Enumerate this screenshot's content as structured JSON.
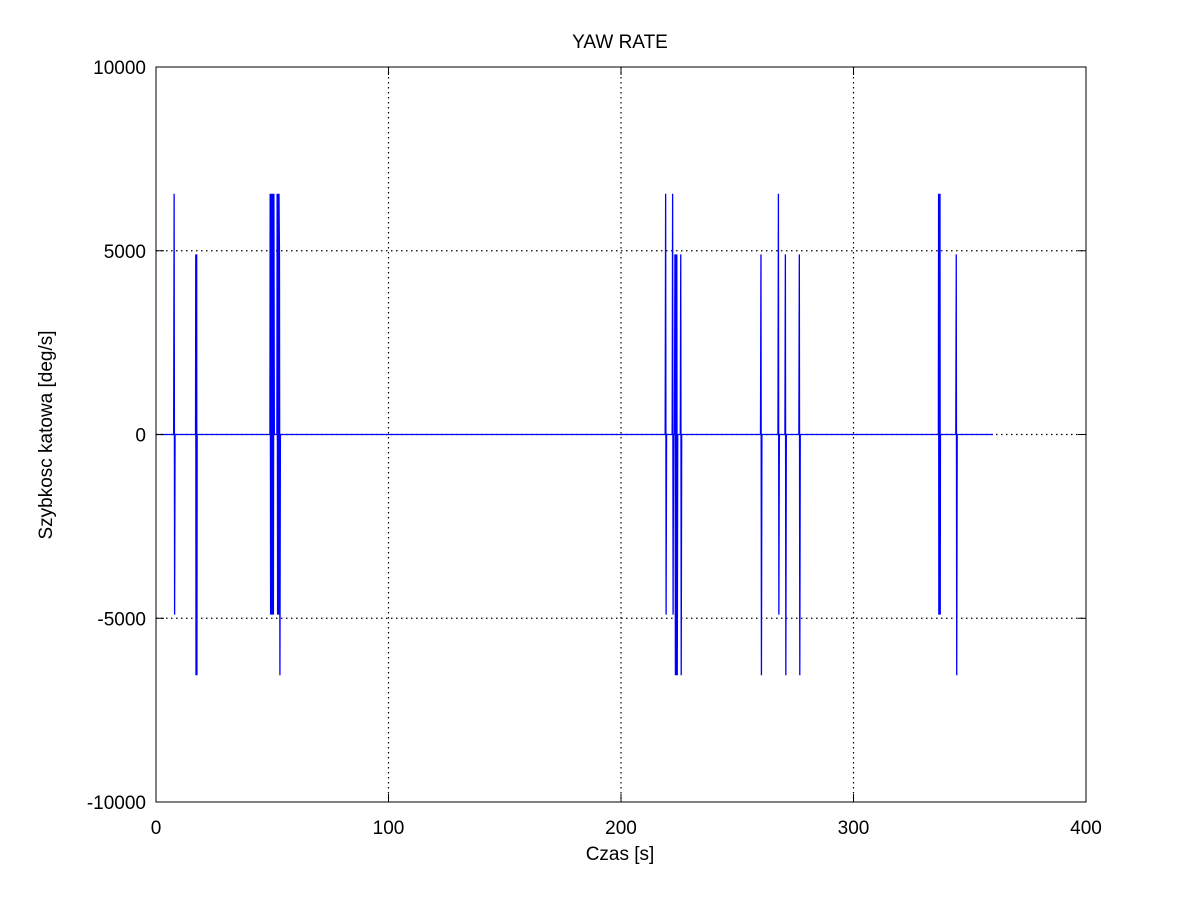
{
  "chart_data": {
    "type": "line",
    "title": "YAW RATE",
    "xlabel": "Czas [s]",
    "ylabel": "Szybkosc katowa [deg/s]",
    "xlim": [
      0,
      400
    ],
    "ylim": [
      -10000,
      10000
    ],
    "xticks": [
      0,
      100,
      200,
      300,
      400
    ],
    "yticks": [
      -10000,
      -5000,
      0,
      5000,
      10000
    ],
    "xtick_labels": [
      "0",
      "100",
      "200",
      "300",
      "400"
    ],
    "ytick_labels": [
      "-10000",
      "-5000",
      "0",
      "5000",
      "10000"
    ],
    "grid": true,
    "legend": "none",
    "series": [
      {
        "color": "#0000ff",
        "points": [
          [
            0,
            0
          ],
          [
            7.6,
            0
          ],
          [
            7.8,
            6550
          ],
          [
            8.0,
            -4900
          ],
          [
            8.2,
            0
          ],
          [
            17.0,
            0
          ],
          [
            17.1,
            4900
          ],
          [
            17.2,
            -6550
          ],
          [
            17.3,
            4900
          ],
          [
            17.4,
            -6550
          ],
          [
            17.5,
            4900
          ],
          [
            17.6,
            -6550
          ],
          [
            17.7,
            0
          ],
          [
            49.0,
            0
          ],
          [
            49.1,
            6550
          ],
          [
            49.3,
            -4900
          ],
          [
            49.5,
            6550
          ],
          [
            49.7,
            -4900
          ],
          [
            49.9,
            6550
          ],
          [
            50.1,
            -4900
          ],
          [
            50.3,
            6550
          ],
          [
            50.5,
            -4900
          ],
          [
            50.7,
            6550
          ],
          [
            50.9,
            0
          ],
          [
            52.0,
            0
          ],
          [
            52.1,
            6550
          ],
          [
            52.3,
            -4900
          ],
          [
            52.5,
            6550
          ],
          [
            52.7,
            -4900
          ],
          [
            52.9,
            6550
          ],
          [
            53.1,
            4900
          ],
          [
            53.3,
            -6550
          ],
          [
            53.5,
            0
          ],
          [
            219.0,
            0
          ],
          [
            219.2,
            6550
          ],
          [
            219.4,
            -4900
          ],
          [
            219.6,
            0
          ],
          [
            222.0,
            0
          ],
          [
            222.2,
            6550
          ],
          [
            222.4,
            -4900
          ],
          [
            222.6,
            0
          ],
          [
            223.0,
            0
          ],
          [
            223.2,
            4900
          ],
          [
            223.4,
            -6550
          ],
          [
            223.6,
            4900
          ],
          [
            223.8,
            -6550
          ],
          [
            224.0,
            4900
          ],
          [
            224.2,
            -6550
          ],
          [
            224.4,
            0
          ],
          [
            225.5,
            0
          ],
          [
            225.7,
            4900
          ],
          [
            225.9,
            -6550
          ],
          [
            226.1,
            0
          ],
          [
            260.0,
            0
          ],
          [
            260.2,
            4900
          ],
          [
            260.4,
            -6550
          ],
          [
            260.6,
            0
          ],
          [
            267.5,
            0
          ],
          [
            267.7,
            6550
          ],
          [
            267.9,
            -4900
          ],
          [
            268.1,
            0
          ],
          [
            270.5,
            0
          ],
          [
            270.7,
            4900
          ],
          [
            270.9,
            -6550
          ],
          [
            271.1,
            0
          ],
          [
            276.5,
            0
          ],
          [
            276.7,
            4900
          ],
          [
            276.9,
            -6550
          ],
          [
            277.1,
            0
          ],
          [
            336.5,
            0
          ],
          [
            336.6,
            6550
          ],
          [
            336.7,
            -4900
          ],
          [
            336.8,
            6550
          ],
          [
            336.9,
            -4900
          ],
          [
            337.0,
            6550
          ],
          [
            337.1,
            -4900
          ],
          [
            337.2,
            6550
          ],
          [
            337.3,
            -4900
          ],
          [
            337.4,
            0
          ],
          [
            344.0,
            0
          ],
          [
            344.2,
            4900
          ],
          [
            344.4,
            -6550
          ],
          [
            344.6,
            0
          ],
          [
            360.0,
            0
          ]
        ]
      }
    ]
  }
}
